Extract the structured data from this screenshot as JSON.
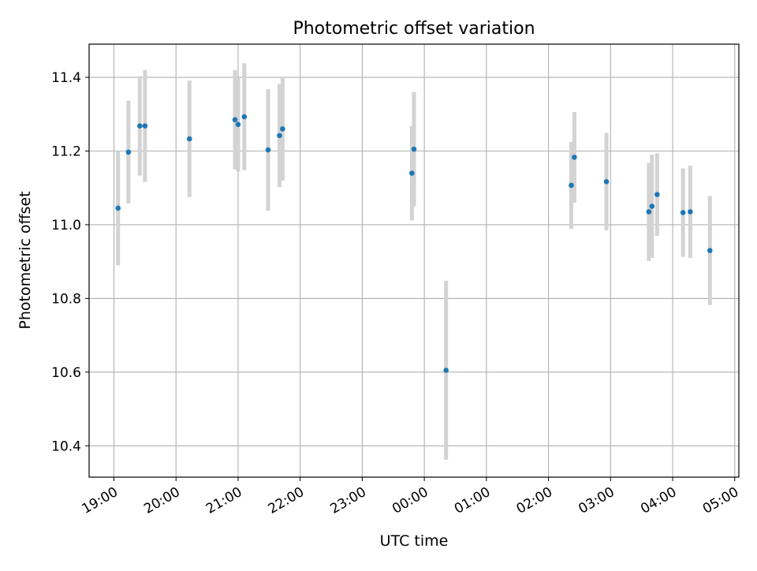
{
  "chart_data": {
    "type": "scatter",
    "title": "Photometric offset variation",
    "xlabel": "UTC time",
    "ylabel": "Photometric offset",
    "x_tick_labels": [
      "19:00",
      "20:00",
      "21:00",
      "22:00",
      "23:00",
      "00:00",
      "01:00",
      "02:00",
      "03:00",
      "04:00",
      "05:00"
    ],
    "y_tick_labels": [
      "10.4",
      "10.6",
      "10.8",
      "11.0",
      "11.2",
      "11.4"
    ],
    "xlim": [
      "18:36",
      "05:04"
    ],
    "ylim": [
      10.315,
      11.49
    ],
    "grid": true,
    "colors": {
      "point": "#1f77b4",
      "errorbar": "#d3d3d3",
      "grid": "#b0b0b0"
    },
    "points": [
      {
        "x": "19:04",
        "y": 11.045,
        "err": 0.155
      },
      {
        "x": "19:14",
        "y": 11.197,
        "err": 0.14
      },
      {
        "x": "19:25",
        "y": 11.268,
        "err": 0.135
      },
      {
        "x": "19:30",
        "y": 11.268,
        "err": 0.152
      },
      {
        "x": "20:13",
        "y": 11.233,
        "err": 0.158
      },
      {
        "x": "20:57",
        "y": 11.285,
        "err": 0.135
      },
      {
        "x": "21:00",
        "y": 11.272,
        "err": 0.128
      },
      {
        "x": "21:06",
        "y": 11.293,
        "err": 0.145
      },
      {
        "x": "21:29",
        "y": 11.203,
        "err": 0.165
      },
      {
        "x": "21:40",
        "y": 11.242,
        "err": 0.14
      },
      {
        "x": "21:43",
        "y": 11.26,
        "err": 0.14
      },
      {
        "x": "23:48",
        "y": 11.14,
        "err": 0.128
      },
      {
        "x": "23:50",
        "y": 11.205,
        "err": 0.155
      },
      {
        "x": "00:21",
        "y": 10.605,
        "err": 0.243
      },
      {
        "x": "02:22",
        "y": 11.107,
        "err": 0.118
      },
      {
        "x": "02:25",
        "y": 11.183,
        "err": 0.123
      },
      {
        "x": "02:56",
        "y": 11.117,
        "err": 0.132
      },
      {
        "x": "03:37",
        "y": 11.035,
        "err": 0.133
      },
      {
        "x": "03:40",
        "y": 11.05,
        "err": 0.14
      },
      {
        "x": "03:45",
        "y": 11.082,
        "err": 0.112
      },
      {
        "x": "04:10",
        "y": 11.033,
        "err": 0.12
      },
      {
        "x": "04:17",
        "y": 11.035,
        "err": 0.125
      },
      {
        "x": "04:36",
        "y": 10.93,
        "err": 0.148
      }
    ]
  }
}
